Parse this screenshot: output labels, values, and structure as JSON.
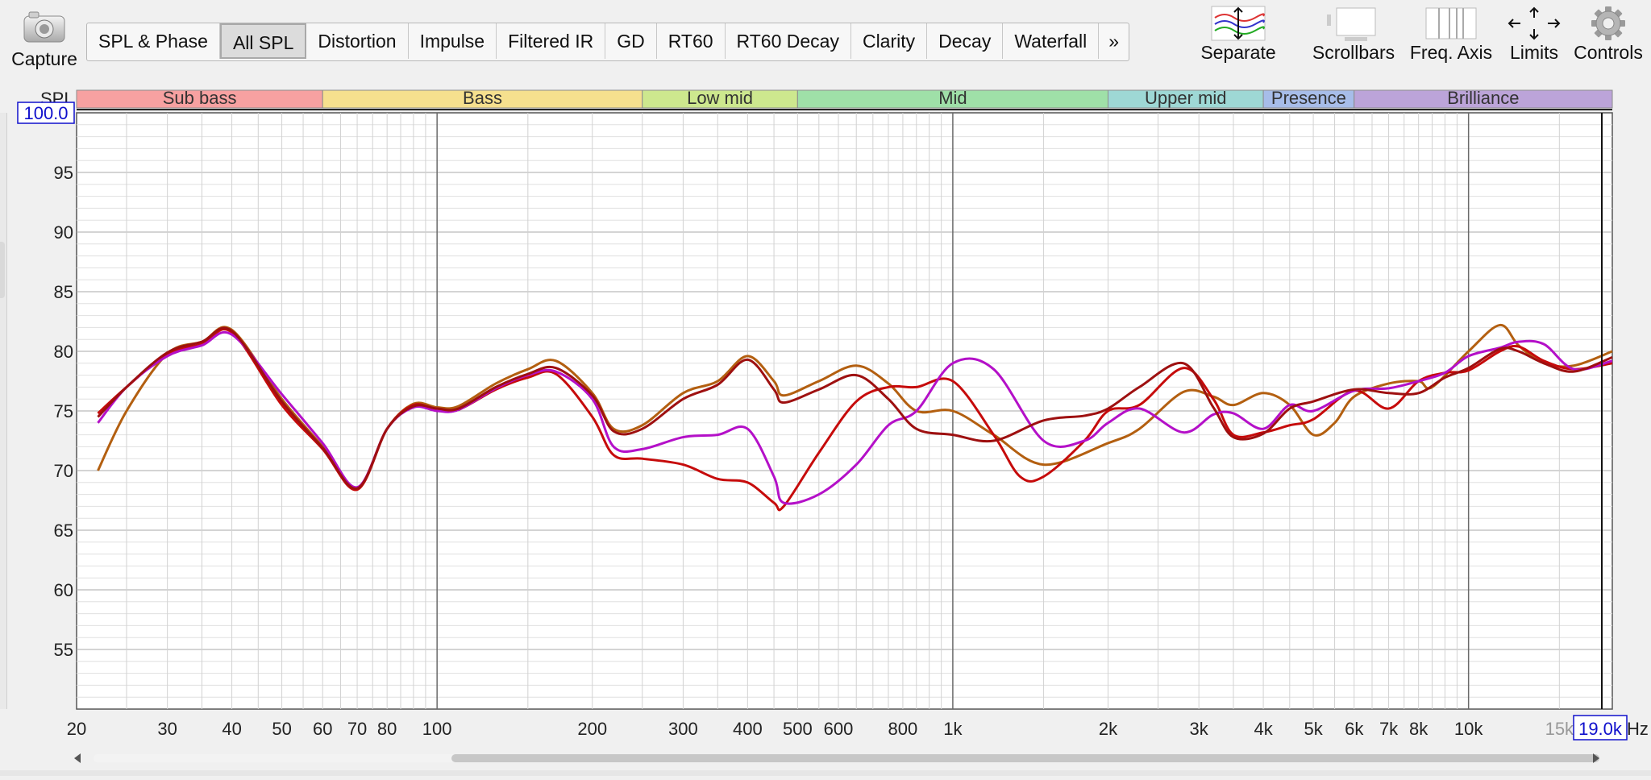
{
  "toolbar": {
    "capture_label": "Capture",
    "tabs": [
      {
        "label": "SPL & Phase",
        "active": false
      },
      {
        "label": "All SPL",
        "active": true
      },
      {
        "label": "Distortion",
        "active": false
      },
      {
        "label": "Impulse",
        "active": false
      },
      {
        "label": "Filtered IR",
        "active": false
      },
      {
        "label": "GD",
        "active": false
      },
      {
        "label": "RT60",
        "active": false
      },
      {
        "label": "RT60 Decay",
        "active": false
      },
      {
        "label": "Clarity",
        "active": false
      },
      {
        "label": "Decay",
        "active": false
      },
      {
        "label": "Waterfall",
        "active": false
      }
    ],
    "more_label": "»",
    "tools": {
      "separate": "Separate",
      "scrollbars": "Scrollbars",
      "freq_axis": "Freq. Axis",
      "limits": "Limits",
      "controls": "Controls"
    }
  },
  "chart_data": {
    "type": "line",
    "ylabel": "SPL",
    "xlabel_unit": "Hz",
    "x_scale": "log",
    "xlim": [
      20,
      19000
    ],
    "ylim": [
      50,
      100
    ],
    "y_max_box": "100.0",
    "x_max_box": "19.0k",
    "y_ticks": [
      55,
      60,
      65,
      70,
      75,
      80,
      85,
      90,
      95
    ],
    "x_ticks": [
      {
        "value": 20,
        "label": "20"
      },
      {
        "value": 30,
        "label": "30"
      },
      {
        "value": 40,
        "label": "40"
      },
      {
        "value": 50,
        "label": "50"
      },
      {
        "value": 60,
        "label": "60"
      },
      {
        "value": 70,
        "label": "70"
      },
      {
        "value": 80,
        "label": "80"
      },
      {
        "value": 100,
        "label": "100"
      },
      {
        "value": 200,
        "label": "200"
      },
      {
        "value": 300,
        "label": "300"
      },
      {
        "value": 400,
        "label": "400"
      },
      {
        "value": 500,
        "label": "500"
      },
      {
        "value": 600,
        "label": "600"
      },
      {
        "value": 800,
        "label": "800"
      },
      {
        "value": 1000,
        "label": "1k"
      },
      {
        "value": 2000,
        "label": "2k"
      },
      {
        "value": 3000,
        "label": "3k"
      },
      {
        "value": 4000,
        "label": "4k"
      },
      {
        "value": 5000,
        "label": "5k"
      },
      {
        "value": 6000,
        "label": "6k"
      },
      {
        "value": 7000,
        "label": "7k"
      },
      {
        "value": 8000,
        "label": "8k"
      },
      {
        "value": 10000,
        "label": "10k"
      },
      {
        "value": 15000,
        "label": "15k"
      }
    ],
    "bands": [
      {
        "name": "Sub bass",
        "from": 20,
        "to": 60,
        "color": "#f7a1a1"
      },
      {
        "name": "Bass",
        "from": 60,
        "to": 250,
        "color": "#f6e08e"
      },
      {
        "name": "Low mid",
        "from": 250,
        "to": 500,
        "color": "#cde88e"
      },
      {
        "name": "Mid",
        "from": 500,
        "to": 2000,
        "color": "#9fe0a8"
      },
      {
        "name": "Upper mid",
        "from": 2000,
        "to": 4000,
        "color": "#9ed8d5"
      },
      {
        "name": "Presence",
        "from": 4000,
        "to": 6000,
        "color": "#a7bde9"
      },
      {
        "name": "Brilliance",
        "from": 6000,
        "to": 19000,
        "color": "#bca4d9"
      }
    ],
    "series": [
      {
        "color": "#b35f10",
        "points": [
          [
            22,
            70
          ],
          [
            25,
            75
          ],
          [
            30,
            79.8
          ],
          [
            35,
            80.8
          ],
          [
            40,
            81.8
          ],
          [
            50,
            76
          ],
          [
            60,
            72
          ],
          [
            70,
            68.5
          ],
          [
            80,
            73.5
          ],
          [
            90,
            75.6
          ],
          [
            100,
            75.3
          ],
          [
            110,
            75.4
          ],
          [
            130,
            77.3
          ],
          [
            150,
            78.5
          ],
          [
            170,
            79.2
          ],
          [
            200,
            76.5
          ],
          [
            220,
            73.5
          ],
          [
            250,
            73.8
          ],
          [
            300,
            76.5
          ],
          [
            350,
            77.5
          ],
          [
            400,
            79.6
          ],
          [
            450,
            77.5
          ],
          [
            470,
            76.3
          ],
          [
            550,
            77.5
          ],
          [
            650,
            78.8
          ],
          [
            750,
            77.3
          ],
          [
            850,
            75
          ],
          [
            1000,
            75
          ],
          [
            1200,
            73
          ],
          [
            1500,
            70.5
          ],
          [
            2000,
            72.3
          ],
          [
            2300,
            73.5
          ],
          [
            2800,
            76.6
          ],
          [
            3200,
            76.2
          ],
          [
            3500,
            75.5
          ],
          [
            4000,
            76.5
          ],
          [
            4500,
            75.5
          ],
          [
            5000,
            73
          ],
          [
            5500,
            74
          ],
          [
            6000,
            76.2
          ],
          [
            7000,
            77.3
          ],
          [
            8000,
            77.5
          ],
          [
            8500,
            77
          ],
          [
            10000,
            80
          ],
          [
            11500,
            82.2
          ],
          [
            12500,
            80.5
          ],
          [
            14000,
            79
          ],
          [
            16000,
            78.8
          ],
          [
            19000,
            80
          ]
        ]
      },
      {
        "color": "#c60b0b",
        "points": [
          [
            22,
            74.8
          ],
          [
            25,
            77
          ],
          [
            30,
            79.8
          ],
          [
            35,
            80.6
          ],
          [
            40,
            81.6
          ],
          [
            50,
            75.5
          ],
          [
            60,
            71.8
          ],
          [
            70,
            68.4
          ],
          [
            80,
            73.5
          ],
          [
            90,
            75.5
          ],
          [
            100,
            75.1
          ],
          [
            110,
            75.1
          ],
          [
            130,
            76.8
          ],
          [
            150,
            77.8
          ],
          [
            170,
            78.1
          ],
          [
            200,
            74.5
          ],
          [
            220,
            71.3
          ],
          [
            250,
            71
          ],
          [
            300,
            70.5
          ],
          [
            350,
            69.3
          ],
          [
            400,
            69
          ],
          [
            450,
            67.3
          ],
          [
            470,
            67
          ],
          [
            550,
            71.5
          ],
          [
            650,
            75.8
          ],
          [
            750,
            77
          ],
          [
            850,
            77
          ],
          [
            1000,
            77.5
          ],
          [
            1200,
            73
          ],
          [
            1350,
            69.5
          ],
          [
            1500,
            69.5
          ],
          [
            1800,
            72.5
          ],
          [
            2000,
            75
          ],
          [
            2300,
            75.5
          ],
          [
            2800,
            78.6
          ],
          [
            3200,
            76
          ],
          [
            3500,
            73
          ],
          [
            4000,
            73.2
          ],
          [
            4500,
            73.8
          ],
          [
            5000,
            74.3
          ],
          [
            6000,
            76.7
          ],
          [
            7000,
            75.2
          ],
          [
            8000,
            77.5
          ],
          [
            9000,
            78.2
          ],
          [
            10000,
            78.4
          ],
          [
            11500,
            80
          ],
          [
            12500,
            80.4
          ],
          [
            14000,
            79.2
          ],
          [
            16000,
            78.5
          ],
          [
            19000,
            79
          ]
        ]
      },
      {
        "color": "#b410c8",
        "points": [
          [
            22,
            74
          ],
          [
            25,
            77
          ],
          [
            30,
            79.6
          ],
          [
            35,
            80.5
          ],
          [
            40,
            81.4
          ],
          [
            50,
            76.4
          ],
          [
            60,
            72.3
          ],
          [
            70,
            68.6
          ],
          [
            80,
            73.5
          ],
          [
            90,
            75.3
          ],
          [
            100,
            75
          ],
          [
            110,
            75.1
          ],
          [
            130,
            76.9
          ],
          [
            150,
            78
          ],
          [
            170,
            78.3
          ],
          [
            200,
            76
          ],
          [
            220,
            72
          ],
          [
            250,
            71.8
          ],
          [
            300,
            72.8
          ],
          [
            350,
            73
          ],
          [
            400,
            73.5
          ],
          [
            450,
            69.5
          ],
          [
            470,
            67.3
          ],
          [
            550,
            68
          ],
          [
            650,
            70.5
          ],
          [
            750,
            73.8
          ],
          [
            850,
            75
          ],
          [
            1000,
            79
          ],
          [
            1200,
            78.5
          ],
          [
            1500,
            72.5
          ],
          [
            1800,
            72.5
          ],
          [
            2000,
            74
          ],
          [
            2300,
            75.2
          ],
          [
            2800,
            73.2
          ],
          [
            3200,
            74.7
          ],
          [
            3500,
            74.8
          ],
          [
            4000,
            73.5
          ],
          [
            4500,
            75.5
          ],
          [
            5000,
            75
          ],
          [
            6000,
            76.7
          ],
          [
            7000,
            76.9
          ],
          [
            8000,
            77.5
          ],
          [
            9000,
            78.2
          ],
          [
            10000,
            79.6
          ],
          [
            11500,
            80.3
          ],
          [
            12500,
            80.8
          ],
          [
            14000,
            80.6
          ],
          [
            16000,
            78.5
          ],
          [
            19000,
            79.2
          ]
        ]
      },
      {
        "color": "#9e1010",
        "points": [
          [
            22,
            74.5
          ],
          [
            25,
            77
          ],
          [
            30,
            79.9
          ],
          [
            35,
            80.8
          ],
          [
            40,
            81.7
          ],
          [
            50,
            75.8
          ],
          [
            60,
            71.9
          ],
          [
            70,
            68.5
          ],
          [
            80,
            73.5
          ],
          [
            90,
            75.4
          ],
          [
            100,
            75.2
          ],
          [
            110,
            75.2
          ],
          [
            130,
            77
          ],
          [
            150,
            78.1
          ],
          [
            170,
            78.6
          ],
          [
            200,
            76.3
          ],
          [
            220,
            73.3
          ],
          [
            250,
            73.5
          ],
          [
            300,
            76
          ],
          [
            350,
            77.2
          ],
          [
            400,
            79.3
          ],
          [
            450,
            76.8
          ],
          [
            470,
            75.7
          ],
          [
            550,
            76.8
          ],
          [
            650,
            78
          ],
          [
            750,
            76
          ],
          [
            850,
            73.5
          ],
          [
            1000,
            73
          ],
          [
            1200,
            72.5
          ],
          [
            1500,
            74.2
          ],
          [
            1800,
            74.6
          ],
          [
            2000,
            75.2
          ],
          [
            2300,
            77
          ],
          [
            2800,
            79
          ],
          [
            3200,
            75.3
          ],
          [
            3500,
            72.8
          ],
          [
            4000,
            73.1
          ],
          [
            4500,
            75.2
          ],
          [
            5000,
            75.8
          ],
          [
            6000,
            76.8
          ],
          [
            7000,
            76.5
          ],
          [
            8000,
            76.5
          ],
          [
            9000,
            77.8
          ],
          [
            10000,
            78.6
          ],
          [
            11500,
            80.2
          ],
          [
            12500,
            80
          ],
          [
            14000,
            79
          ],
          [
            16000,
            78.3
          ],
          [
            19000,
            79.5
          ]
        ]
      }
    ]
  }
}
